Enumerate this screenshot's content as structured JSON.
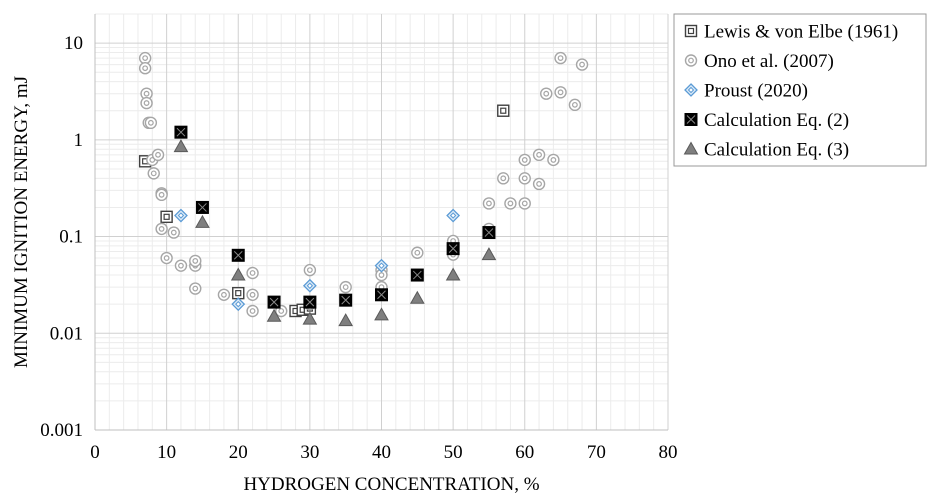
{
  "chart_data": {
    "type": "scatter",
    "xlabel": "HYDROGEN CONCENTRATION, %",
    "ylabel": "MINIMUM IGNITION ENERGY, mJ",
    "xlim": [
      0,
      80
    ],
    "ylim": [
      0.001,
      20
    ],
    "yscale": "log",
    "grid": true,
    "legend_position": "right",
    "x_ticks": [
      "0",
      "10",
      "20",
      "30",
      "40",
      "50",
      "60",
      "70",
      "80"
    ],
    "y_ticks": [
      "0.001",
      "0.01",
      "0.1",
      "1",
      "10"
    ],
    "x_tick_values": [
      0,
      10,
      20,
      30,
      40,
      50,
      60,
      70,
      80
    ],
    "y_tick_values": [
      0.001,
      0.01,
      0.1,
      1,
      10
    ],
    "series": [
      {
        "name": "Lewis & von Elbe (1961)",
        "marker": "square-dot",
        "color": "#555555",
        "points": [
          [
            7,
            0.6
          ],
          [
            10,
            0.16
          ],
          [
            20,
            0.026
          ],
          [
            28,
            0.017
          ],
          [
            29,
            0.0175
          ],
          [
            30,
            0.018
          ],
          [
            57,
            2.0
          ]
        ]
      },
      {
        "name": "Ono et al. (2007)",
        "marker": "circle-dot",
        "color": "#a6a6a6",
        "points": [
          [
            7,
            7.0
          ],
          [
            7,
            5.5
          ],
          [
            7.2,
            3.0
          ],
          [
            7.2,
            2.4
          ],
          [
            7.5,
            1.5
          ],
          [
            7.8,
            1.5
          ],
          [
            8,
            0.62
          ],
          [
            8.2,
            0.45
          ],
          [
            8.8,
            0.7
          ],
          [
            9.3,
            0.28
          ],
          [
            9.3,
            0.27
          ],
          [
            9.3,
            0.12
          ],
          [
            10,
            0.06
          ],
          [
            11,
            0.11
          ],
          [
            12,
            0.05
          ],
          [
            14,
            0.05
          ],
          [
            14,
            0.056
          ],
          [
            14,
            0.029
          ],
          [
            18,
            0.025
          ],
          [
            22,
            0.042
          ],
          [
            22,
            0.025
          ],
          [
            22,
            0.017
          ],
          [
            26,
            0.017
          ],
          [
            30,
            0.045
          ],
          [
            30,
            0.02
          ],
          [
            35,
            0.03
          ],
          [
            35,
            0.022
          ],
          [
            40,
            0.045
          ],
          [
            40,
            0.04
          ],
          [
            40,
            0.03
          ],
          [
            45,
            0.068
          ],
          [
            50,
            0.09
          ],
          [
            50,
            0.065
          ],
          [
            55,
            0.12
          ],
          [
            55,
            0.22
          ],
          [
            57,
            0.4
          ],
          [
            58,
            0.22
          ],
          [
            60,
            0.62
          ],
          [
            60,
            0.4
          ],
          [
            60,
            0.22
          ],
          [
            62,
            0.7
          ],
          [
            62,
            0.35
          ],
          [
            63,
            3.0
          ],
          [
            64,
            0.62
          ],
          [
            65,
            7.0
          ],
          [
            65,
            3.1
          ],
          [
            67,
            2.3
          ],
          [
            68,
            6.0
          ]
        ]
      },
      {
        "name": "Proust (2020)",
        "marker": "diamond",
        "color": "#5b9bd5",
        "points": [
          [
            12,
            0.165
          ],
          [
            20,
            0.02
          ],
          [
            30,
            0.031
          ],
          [
            40,
            0.05
          ],
          [
            50,
            0.165
          ]
        ]
      },
      {
        "name": "Calculation Eq. (2)",
        "marker": "square-black",
        "color": "#000000",
        "points": [
          [
            12,
            1.2
          ],
          [
            15,
            0.2
          ],
          [
            20,
            0.064
          ],
          [
            25,
            0.021
          ],
          [
            30,
            0.021
          ],
          [
            35,
            0.022
          ],
          [
            40,
            0.025
          ],
          [
            45,
            0.04
          ],
          [
            50,
            0.075
          ],
          [
            55,
            0.11
          ]
        ]
      },
      {
        "name": "Calculation Eq. (3)",
        "marker": "triangle",
        "color": "#7f7f7f",
        "points": [
          [
            12,
            0.85
          ],
          [
            15,
            0.14
          ],
          [
            20,
            0.04
          ],
          [
            25,
            0.015
          ],
          [
            30,
            0.014
          ],
          [
            35,
            0.0135
          ],
          [
            40,
            0.0155
          ],
          [
            45,
            0.023
          ],
          [
            50,
            0.04
          ],
          [
            55,
            0.065
          ]
        ]
      }
    ]
  }
}
